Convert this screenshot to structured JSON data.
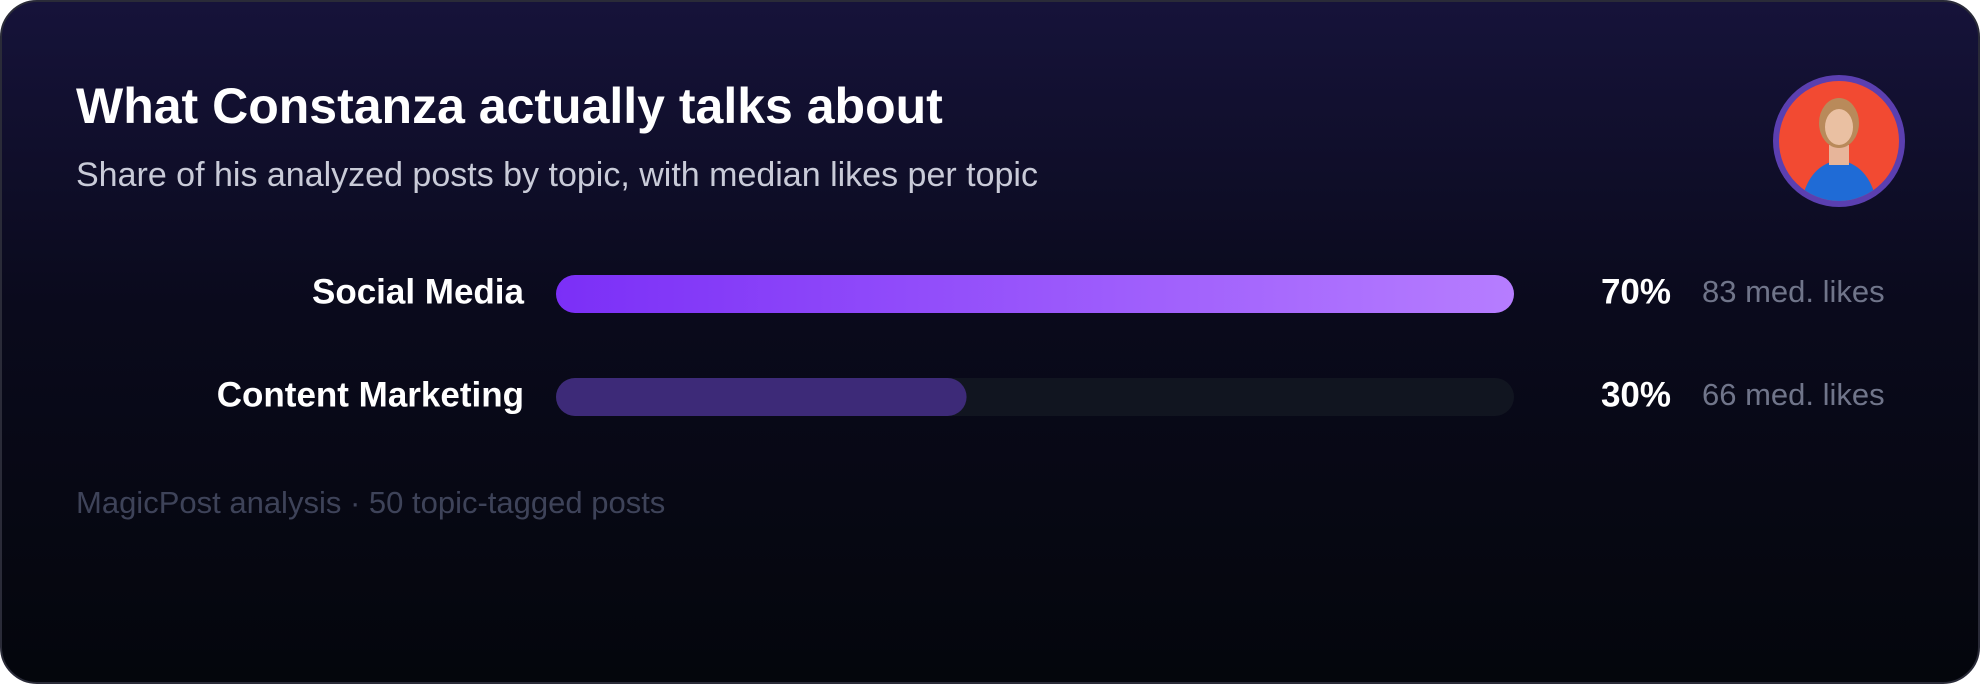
{
  "chart_data": {
    "type": "bar",
    "orientation": "horizontal",
    "title": "What Constanza actually talks about",
    "subtitle": "Share of his analyzed posts by topic, with median likes per topic",
    "categories": [
      "Social Media",
      "Content Marketing"
    ],
    "values": [
      70,
      30
    ],
    "value_labels": [
      "70%",
      "30%"
    ],
    "likes_labels": [
      "83 med. likes",
      "66 med. likes"
    ],
    "colors": [
      [
        "#7b2ff7",
        "#b67dff"
      ],
      [
        "#3d2a78",
        "#3d2a78"
      ]
    ],
    "track_color": "#111520",
    "xlim": [
      0,
      70
    ],
    "footer": "MagicPost analysis · 50 topic-tagged posts"
  }
}
